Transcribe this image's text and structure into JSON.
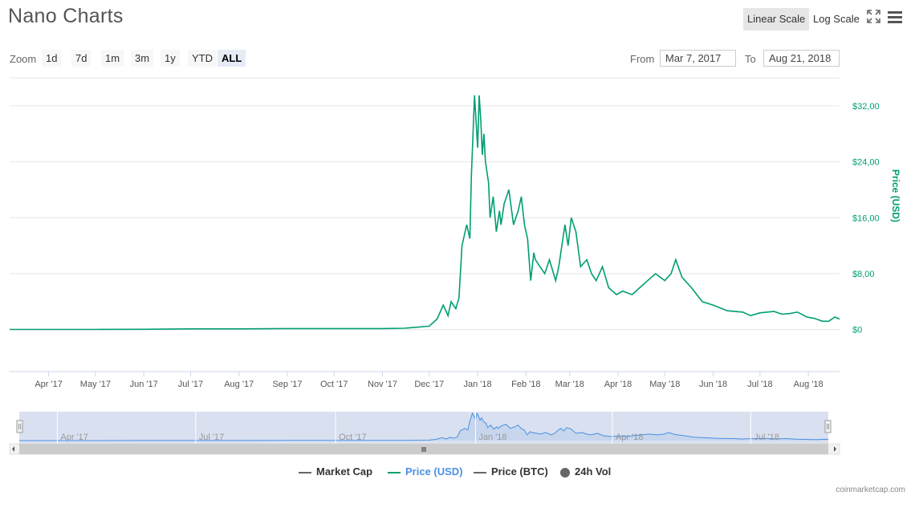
{
  "header": {
    "title": "Nano Charts",
    "linear_scale_label": "Linear Scale",
    "log_scale_label": "Log Scale"
  },
  "zoom": {
    "label": "Zoom",
    "buttons": [
      "1d",
      "7d",
      "1m",
      "3m",
      "1y",
      "YTD",
      "ALL"
    ],
    "active": "ALL"
  },
  "range": {
    "from_label": "From",
    "from_value": "Mar 7, 2017",
    "to_label": "To",
    "to_value": "Aug 21, 2018"
  },
  "legend": {
    "items": [
      "Market Cap",
      "Price (USD)",
      "Price (BTC)",
      "24h Vol"
    ],
    "colors": [
      "#666666",
      "#009e73",
      "#666666",
      "#666666"
    ]
  },
  "credit": "coinmarketcap.com",
  "colors": {
    "price_line": "#009e73",
    "navigator_fill": "#ccd6eb",
    "navigator_line": "#4a90e2",
    "grid": "#e6e6e6"
  },
  "chart_data": {
    "type": "line",
    "ylabel": "Price (USD)",
    "y_axis_side": "right",
    "ylim": [
      -6,
      36
    ],
    "y_ticks": [
      0,
      8,
      16,
      24,
      32
    ],
    "y_tick_labels": [
      "$0",
      "$8,00",
      "$16,00",
      "$24,00",
      "$32,00"
    ],
    "xlim": [
      "2017-03-07",
      "2018-08-21"
    ],
    "x_ticks": [
      "2017-04-01",
      "2017-05-01",
      "2017-06-01",
      "2017-07-01",
      "2017-08-01",
      "2017-09-01",
      "2017-10-01",
      "2017-11-01",
      "2017-12-01",
      "2018-01-01",
      "2018-02-01",
      "2018-03-01",
      "2018-04-01",
      "2018-05-01",
      "2018-06-01",
      "2018-07-01",
      "2018-08-01"
    ],
    "x_tick_labels": [
      "Apr '17",
      "May '17",
      "Jun '17",
      "Jul '17",
      "Aug '17",
      "Sep '17",
      "Oct '17",
      "Nov '17",
      "Dec '17",
      "Jan '18",
      "Feb '18",
      "Mar '18",
      "Apr '18",
      "May '18",
      "Jun '18",
      "Jul '18",
      "Aug '18"
    ],
    "navigator_tick_labels": [
      "Apr '17",
      "Jul '17",
      "Oct '17",
      "Jan '18",
      "Apr '18",
      "Jul '18"
    ],
    "navigator_ticks": [
      "2017-04-01",
      "2017-07-01",
      "2017-10-01",
      "2018-01-01",
      "2018-04-01",
      "2018-07-01"
    ],
    "grid": true,
    "legend_position": "bottom",
    "series": [
      {
        "name": "Price (USD)",
        "x": [
          "2017-03-07",
          "2017-04-01",
          "2017-05-01",
          "2017-06-01",
          "2017-07-01",
          "2017-08-01",
          "2017-09-01",
          "2017-10-01",
          "2017-11-01",
          "2017-11-15",
          "2017-12-01",
          "2017-12-06",
          "2017-12-10",
          "2017-12-13",
          "2017-12-15",
          "2017-12-18",
          "2017-12-20",
          "2017-12-22",
          "2017-12-25",
          "2017-12-27",
          "2017-12-28",
          "2017-12-30",
          "2018-01-01",
          "2018-01-02",
          "2018-01-03",
          "2018-01-04",
          "2018-01-05",
          "2018-01-06",
          "2018-01-08",
          "2018-01-09",
          "2018-01-11",
          "2018-01-13",
          "2018-01-15",
          "2018-01-16",
          "2018-01-18",
          "2018-01-21",
          "2018-01-24",
          "2018-01-27",
          "2018-01-29",
          "2018-01-31",
          "2018-02-02",
          "2018-02-04",
          "2018-02-06",
          "2018-02-07",
          "2018-02-10",
          "2018-02-13",
          "2018-02-16",
          "2018-02-20",
          "2018-02-22",
          "2018-02-24",
          "2018-02-26",
          "2018-02-28",
          "2018-03-02",
          "2018-03-05",
          "2018-03-08",
          "2018-03-12",
          "2018-03-15",
          "2018-03-18",
          "2018-03-22",
          "2018-03-26",
          "2018-03-31",
          "2018-04-04",
          "2018-04-10",
          "2018-04-15",
          "2018-04-20",
          "2018-04-25",
          "2018-05-01",
          "2018-05-05",
          "2018-05-08",
          "2018-05-12",
          "2018-05-18",
          "2018-05-25",
          "2018-06-01",
          "2018-06-10",
          "2018-06-20",
          "2018-06-25",
          "2018-07-01",
          "2018-07-10",
          "2018-07-15",
          "2018-07-20",
          "2018-07-25",
          "2018-07-31",
          "2018-08-05",
          "2018-08-10",
          "2018-08-14",
          "2018-08-18",
          "2018-08-21"
        ],
        "y": [
          0.02,
          0.03,
          0.03,
          0.05,
          0.1,
          0.1,
          0.15,
          0.15,
          0.15,
          0.2,
          0.5,
          1.5,
          3.5,
          2,
          4,
          3,
          4.5,
          12,
          15,
          13,
          22,
          33.5,
          26,
          33.5,
          30,
          25,
          28,
          24,
          21,
          16,
          19,
          14,
          17,
          15,
          18,
          20,
          15,
          17,
          19,
          15,
          13,
          7,
          11,
          10,
          9,
          8,
          10,
          7,
          9,
          12,
          15,
          12,
          16,
          14,
          9,
          10,
          8,
          7,
          9,
          6,
          5,
          5.5,
          5,
          6,
          7,
          8,
          7,
          8,
          10,
          7.5,
          6,
          4,
          3.5,
          2.7,
          2.5,
          2,
          2.4,
          2.6,
          2.2,
          2.3,
          2.5,
          1.8,
          1.6,
          1.2,
          1.2,
          1.8,
          1.5
        ]
      }
    ]
  }
}
